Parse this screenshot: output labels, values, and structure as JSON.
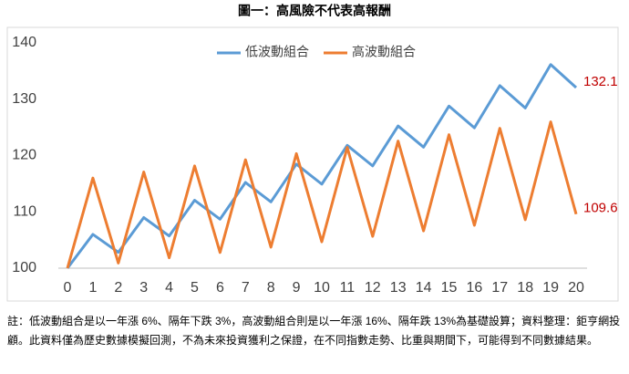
{
  "chart_data": {
    "type": "line",
    "title": "圖一：高風險不代表高報酬",
    "x": [
      0,
      1,
      2,
      3,
      4,
      5,
      6,
      7,
      8,
      9,
      10,
      11,
      12,
      13,
      14,
      15,
      16,
      17,
      18,
      19,
      20
    ],
    "xlim": [
      0,
      20
    ],
    "xticks": [
      0,
      1,
      2,
      3,
      4,
      5,
      6,
      7,
      8,
      9,
      10,
      11,
      12,
      13,
      14,
      15,
      16,
      17,
      18,
      19,
      20
    ],
    "ylim": [
      100,
      140
    ],
    "yticks": [
      100,
      110,
      120,
      130,
      140
    ],
    "series": [
      {
        "name": "低波動組合",
        "color": "#5b9bd5",
        "values": [
          100,
          106,
          102.82,
          108.99,
          105.72,
          112.06,
          108.7,
          115.22,
          111.77,
          118.47,
          114.92,
          121.81,
          118.16,
          125.25,
          121.49,
          128.78,
          124.92,
          132.41,
          128.44,
          136.15,
          132.06
        ],
        "value_labels": [
          null,
          null,
          null,
          null,
          null,
          null,
          null,
          null,
          null,
          null,
          null,
          null,
          null,
          null,
          null,
          null,
          null,
          null,
          null,
          null,
          "132.1"
        ]
      },
      {
        "name": "高波動組合",
        "color": "#ed7d31",
        "values": [
          100,
          116,
          100.92,
          117.07,
          101.85,
          118.15,
          102.79,
          119.24,
          103.74,
          120.33,
          104.69,
          121.44,
          105.65,
          122.56,
          106.63,
          123.69,
          107.61,
          124.83,
          108.6,
          125.97,
          109.6
        ],
        "value_labels": [
          null,
          null,
          null,
          null,
          null,
          null,
          null,
          null,
          null,
          null,
          null,
          null,
          null,
          null,
          null,
          null,
          null,
          null,
          null,
          null,
          "109.6"
        ]
      }
    ],
    "value_label_color": "#c00000",
    "note": "註：低波動組合是以一年漲 6%、隔年下跌 3%，高波動組合則是以一年漲 16%、隔年跌 13%為基礎設算；資料整理：鉅亨網投顧。此資料僅為歷史數據模擬回測，不為未來投資獲利之保證，在不同指數走勢、比重與期間下，可能得到不同數據結果。"
  }
}
